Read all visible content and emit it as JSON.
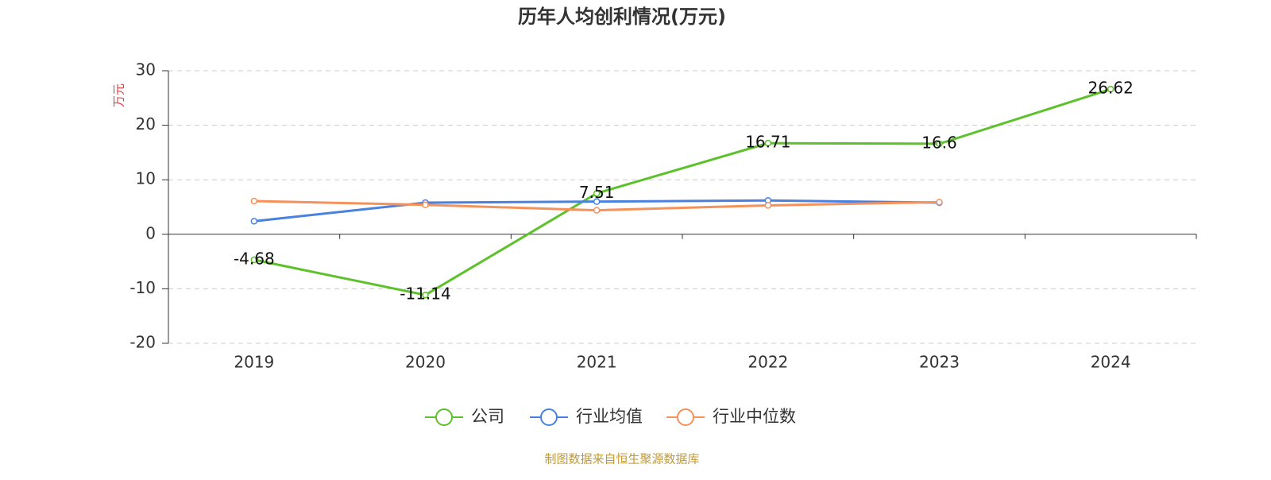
{
  "chart_data": {
    "type": "line",
    "title": "历年人均创利情况(万元)",
    "y_label": "万元",
    "categories": [
      "2019",
      "2020",
      "2021",
      "2022",
      "2023",
      "2024"
    ],
    "series": [
      {
        "name": "公司",
        "color": "#5cc12a",
        "values": [
          -4.68,
          -11.14,
          7.51,
          16.71,
          16.6,
          26.62
        ],
        "show_labels": true
      },
      {
        "name": "行业均值",
        "color": "#4a80e0",
        "values": [
          2.4,
          5.8,
          6.0,
          6.2,
          5.8,
          null
        ],
        "show_labels": false
      },
      {
        "name": "行业中位数",
        "color": "#f5915a",
        "values": [
          6.1,
          5.4,
          4.4,
          5.3,
          5.9,
          null
        ],
        "show_labels": false
      }
    ],
    "ylim": [
      -20,
      30
    ],
    "yticks": [
      -20,
      -10,
      0,
      10,
      20,
      30
    ],
    "grid": true,
    "source": "制图数据来自恒生聚源数据库"
  }
}
